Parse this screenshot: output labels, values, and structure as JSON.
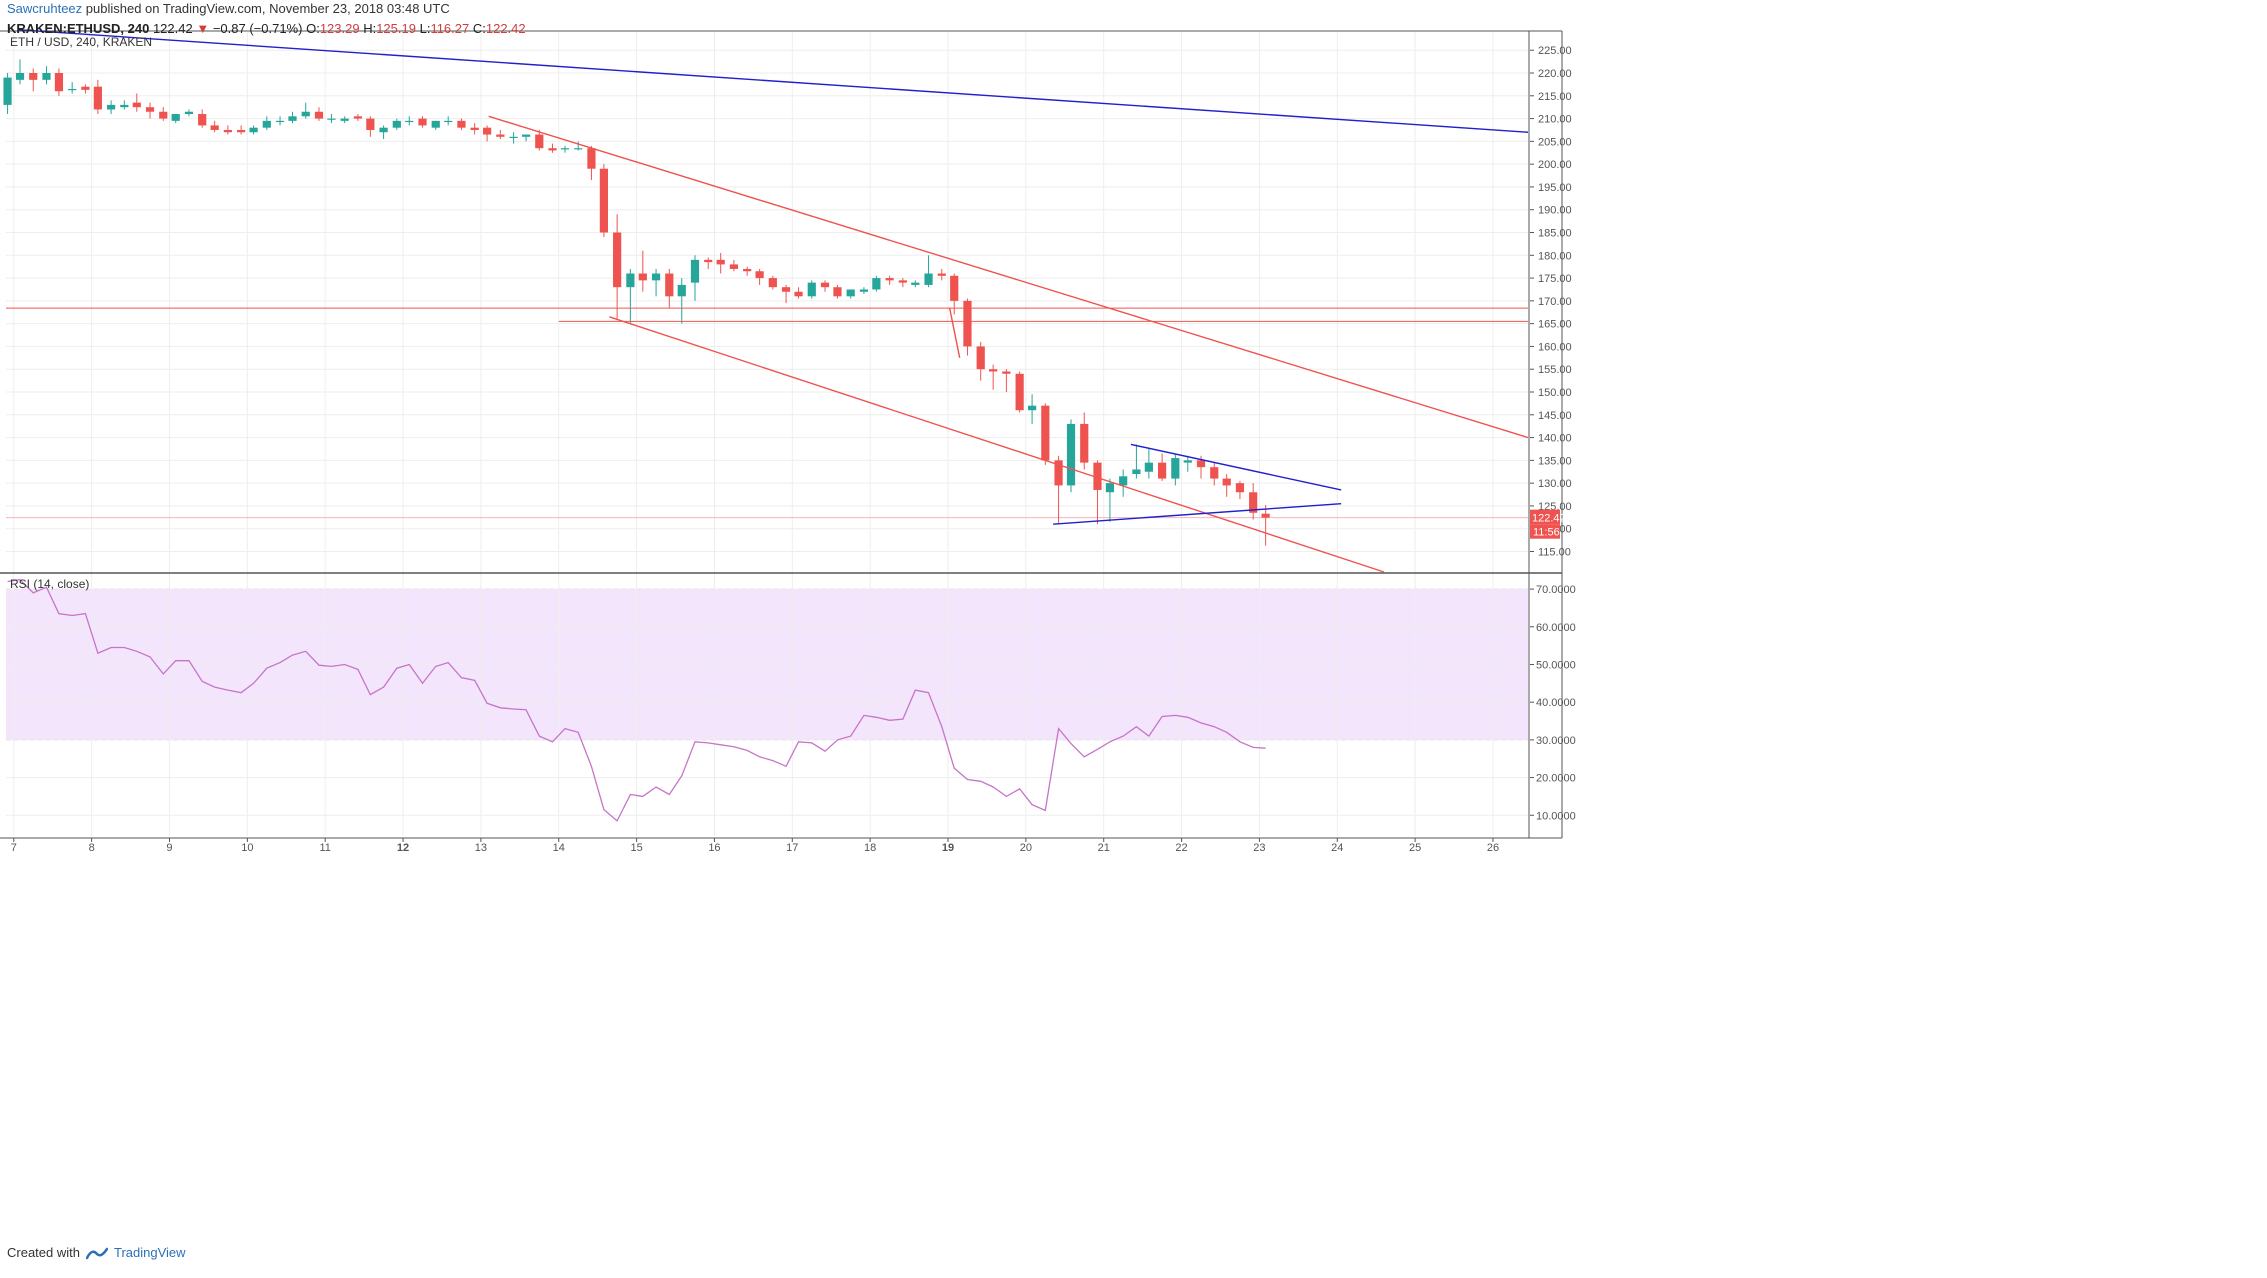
{
  "header": {
    "author": "Sawcruhteez",
    "published": "published on TradingView.com, November 23, 2018 03:48 UTC",
    "symbol": "KRAKEN:ETHUSD, 240",
    "last": "122.42",
    "change": "−0.87 (−0.71%)",
    "o_label": "O:",
    "o_value": "123.29",
    "h_label": "H:",
    "h_value": "125.19",
    "l_label": "L:",
    "l_value": "116.27",
    "c_label": "C:",
    "c_value": "122.42"
  },
  "footer": {
    "created_with": "Created with",
    "brand": "TradingView"
  },
  "colors": {
    "up": "#26a69a",
    "down": "#ef5350",
    "trend_blue": "#2020cc",
    "trend_red": "#ef5350",
    "rsi_line": "#c774c8",
    "rsi_band": "#f3e5fc",
    "grid": "#eeeeee",
    "axis": "#555555"
  },
  "chart_data": [
    {
      "type": "candlestick",
      "title": "ETH / USD, 240, KRAKEN",
      "y_ticks": [
        "115.00",
        "120.00",
        "125.00",
        "130.00",
        "135.00",
        "140.00",
        "145.00",
        "150.00",
        "155.00",
        "160.00",
        "165.00",
        "170.00",
        "175.00",
        "180.00",
        "185.00",
        "190.00",
        "195.00",
        "200.00",
        "205.00",
        "210.00",
        "215.00",
        "220.00",
        "225.00"
      ],
      "ylim": [
        110.5,
        229
      ],
      "x_ticks": [
        {
          "label": "7",
          "day": 7
        },
        {
          "label": "8",
          "day": 8
        },
        {
          "label": "9",
          "day": 9
        },
        {
          "label": "10",
          "day": 10
        },
        {
          "label": "11",
          "day": 11
        },
        {
          "label": "12",
          "day": 12,
          "bold": true
        },
        {
          "label": "13",
          "day": 13
        },
        {
          "label": "14",
          "day": 14
        },
        {
          "label": "15",
          "day": 15
        },
        {
          "label": "16",
          "day": 16
        },
        {
          "label": "17",
          "day": 17
        },
        {
          "label": "18",
          "day": 18
        },
        {
          "label": "19",
          "day": 19,
          "bold": true
        },
        {
          "label": "20",
          "day": 20
        },
        {
          "label": "21",
          "day": 21
        },
        {
          "label": "22",
          "day": 22
        },
        {
          "label": "23",
          "day": 23
        },
        {
          "label": "24",
          "day": 24
        },
        {
          "label": "25",
          "day": 25
        },
        {
          "label": "26",
          "day": 26
        }
      ],
      "xlim": [
        6.9,
        26.45
      ],
      "candles": [
        {
          "x": 6.92,
          "o": 213,
          "h": 220,
          "l": 211,
          "c": 219
        },
        {
          "x": 7.08,
          "o": 218.5,
          "h": 223,
          "l": 217.5,
          "c": 220
        },
        {
          "x": 7.25,
          "o": 220,
          "h": 221,
          "l": 216,
          "c": 218.5
        },
        {
          "x": 7.42,
          "o": 218.5,
          "h": 221.5,
          "l": 217.5,
          "c": 220
        },
        {
          "x": 7.58,
          "o": 220,
          "h": 221,
          "l": 215,
          "c": 216
        },
        {
          "x": 7.75,
          "o": 216.5,
          "h": 218,
          "l": 215.5,
          "c": 216.5
        },
        {
          "x": 7.92,
          "o": 217,
          "h": 217.5,
          "l": 215.5,
          "c": 216.3
        },
        {
          "x": 8.08,
          "o": 217,
          "h": 218.5,
          "l": 211,
          "c": 212
        },
        {
          "x": 8.25,
          "o": 212,
          "h": 214,
          "l": 211,
          "c": 213
        },
        {
          "x": 8.42,
          "o": 212.5,
          "h": 214,
          "l": 212,
          "c": 213
        },
        {
          "x": 8.58,
          "o": 213.5,
          "h": 215.5,
          "l": 211.5,
          "c": 212.5
        },
        {
          "x": 8.75,
          "o": 212.5,
          "h": 213.5,
          "l": 210,
          "c": 211.5
        },
        {
          "x": 8.92,
          "o": 211.5,
          "h": 212.5,
          "l": 209.5,
          "c": 210
        },
        {
          "x": 9.08,
          "o": 209.5,
          "h": 211,
          "l": 209,
          "c": 211
        },
        {
          "x": 9.25,
          "o": 211,
          "h": 212,
          "l": 210.5,
          "c": 211.5
        },
        {
          "x": 9.42,
          "o": 211,
          "h": 212,
          "l": 208,
          "c": 208.5
        },
        {
          "x": 9.58,
          "o": 208.5,
          "h": 209.5,
          "l": 207,
          "c": 207.5
        },
        {
          "x": 9.75,
          "o": 207.5,
          "h": 208.5,
          "l": 206.5,
          "c": 207
        },
        {
          "x": 9.92,
          "o": 207.5,
          "h": 208.5,
          "l": 206.5,
          "c": 207
        },
        {
          "x": 10.08,
          "o": 207,
          "h": 208.5,
          "l": 206.5,
          "c": 208
        },
        {
          "x": 10.25,
          "o": 208,
          "h": 210.5,
          "l": 207.5,
          "c": 209.5
        },
        {
          "x": 10.42,
          "o": 209.5,
          "h": 210.5,
          "l": 208.5,
          "c": 209.5
        },
        {
          "x": 10.58,
          "o": 209.5,
          "h": 211.5,
          "l": 209,
          "c": 210.5
        },
        {
          "x": 10.75,
          "o": 210.5,
          "h": 213.5,
          "l": 210,
          "c": 211.5
        },
        {
          "x": 10.92,
          "o": 211.5,
          "h": 212.5,
          "l": 209.5,
          "c": 210
        },
        {
          "x": 11.08,
          "o": 210,
          "h": 211,
          "l": 209,
          "c": 210
        },
        {
          "x": 11.25,
          "o": 209.5,
          "h": 210.5,
          "l": 209,
          "c": 210
        },
        {
          "x": 11.42,
          "o": 210.5,
          "h": 211,
          "l": 209.5,
          "c": 210
        },
        {
          "x": 11.58,
          "o": 210,
          "h": 210.5,
          "l": 206,
          "c": 207.5
        },
        {
          "x": 11.75,
          "o": 207,
          "h": 208.5,
          "l": 205.5,
          "c": 208
        },
        {
          "x": 11.92,
          "o": 208,
          "h": 210,
          "l": 207.5,
          "c": 209.5
        },
        {
          "x": 12.08,
          "o": 209.5,
          "h": 210.5,
          "l": 208.5,
          "c": 209.5
        },
        {
          "x": 12.25,
          "o": 210,
          "h": 210.5,
          "l": 208,
          "c": 208.5
        },
        {
          "x": 12.42,
          "o": 208,
          "h": 209.5,
          "l": 207.5,
          "c": 209.5
        },
        {
          "x": 12.58,
          "o": 209.5,
          "h": 210.5,
          "l": 208.5,
          "c": 209.5
        },
        {
          "x": 12.75,
          "o": 209.5,
          "h": 210,
          "l": 207.5,
          "c": 208
        },
        {
          "x": 12.92,
          "o": 208,
          "h": 209,
          "l": 206.5,
          "c": 207.5
        },
        {
          "x": 13.08,
          "o": 208,
          "h": 208.5,
          "l": 205,
          "c": 206.5
        },
        {
          "x": 13.25,
          "o": 206.5,
          "h": 207.5,
          "l": 205.5,
          "c": 206
        },
        {
          "x": 13.42,
          "o": 206,
          "h": 207,
          "l": 204.5,
          "c": 206
        },
        {
          "x": 13.58,
          "o": 206,
          "h": 206.5,
          "l": 205,
          "c": 206.5
        },
        {
          "x": 13.75,
          "o": 206.5,
          "h": 207.5,
          "l": 203,
          "c": 203.5
        },
        {
          "x": 13.92,
          "o": 203.5,
          "h": 204.5,
          "l": 202.5,
          "c": 203
        },
        {
          "x": 14.08,
          "o": 203.5,
          "h": 204,
          "l": 202.5,
          "c": 203.5
        },
        {
          "x": 14.25,
          "o": 203.5,
          "h": 205,
          "l": 203,
          "c": 203.5
        },
        {
          "x": 14.42,
          "o": 203.5,
          "h": 204,
          "l": 196.5,
          "c": 199
        },
        {
          "x": 14.58,
          "o": 199,
          "h": 200,
          "l": 184,
          "c": 185
        },
        {
          "x": 14.75,
          "o": 185,
          "h": 189,
          "l": 166,
          "c": 173
        },
        {
          "x": 14.92,
          "o": 173,
          "h": 177,
          "l": 165,
          "c": 176
        },
        {
          "x": 15.08,
          "o": 176,
          "h": 181,
          "l": 172,
          "c": 174.5
        },
        {
          "x": 15.25,
          "o": 174.5,
          "h": 177,
          "l": 171,
          "c": 176
        },
        {
          "x": 15.42,
          "o": 176,
          "h": 177,
          "l": 168.5,
          "c": 171
        },
        {
          "x": 15.58,
          "o": 171,
          "h": 175,
          "l": 165,
          "c": 173.5
        },
        {
          "x": 15.75,
          "o": 174,
          "h": 180,
          "l": 170,
          "c": 179
        },
        {
          "x": 15.92,
          "o": 179,
          "h": 179.5,
          "l": 177,
          "c": 178.5
        },
        {
          "x": 16.08,
          "o": 179,
          "h": 180.5,
          "l": 176,
          "c": 178
        },
        {
          "x": 16.25,
          "o": 178,
          "h": 179,
          "l": 176.5,
          "c": 177
        },
        {
          "x": 16.42,
          "o": 177,
          "h": 177.5,
          "l": 175.5,
          "c": 176.5
        },
        {
          "x": 16.58,
          "o": 176.5,
          "h": 177,
          "l": 173.5,
          "c": 175
        },
        {
          "x": 16.75,
          "o": 175,
          "h": 175.5,
          "l": 172.5,
          "c": 173
        },
        {
          "x": 16.92,
          "o": 173,
          "h": 173.5,
          "l": 169.5,
          "c": 172
        },
        {
          "x": 17.08,
          "o": 172,
          "h": 173,
          "l": 170.5,
          "c": 171
        },
        {
          "x": 17.25,
          "o": 171,
          "h": 174.5,
          "l": 170.5,
          "c": 174
        },
        {
          "x": 17.42,
          "o": 174,
          "h": 174.5,
          "l": 172,
          "c": 173
        },
        {
          "x": 17.58,
          "o": 173,
          "h": 173.5,
          "l": 170.5,
          "c": 171
        },
        {
          "x": 17.75,
          "o": 171,
          "h": 172.5,
          "l": 170.5,
          "c": 172.5
        },
        {
          "x": 17.92,
          "o": 172,
          "h": 173,
          "l": 171.5,
          "c": 172.5
        },
        {
          "x": 18.08,
          "o": 172.5,
          "h": 175.5,
          "l": 172,
          "c": 175
        },
        {
          "x": 18.25,
          "o": 175,
          "h": 175.5,
          "l": 173.5,
          "c": 174.5
        },
        {
          "x": 18.42,
          "o": 174.5,
          "h": 175,
          "l": 173,
          "c": 174
        },
        {
          "x": 18.58,
          "o": 173.5,
          "h": 174.5,
          "l": 173,
          "c": 174
        },
        {
          "x": 18.75,
          "o": 173.5,
          "h": 180,
          "l": 173,
          "c": 176
        },
        {
          "x": 18.92,
          "o": 176,
          "h": 177,
          "l": 174.5,
          "c": 175.5
        },
        {
          "x": 19.08,
          "o": 175.5,
          "h": 176,
          "l": 167,
          "c": 170
        },
        {
          "x": 19.25,
          "o": 170,
          "h": 170.5,
          "l": 158,
          "c": 160
        },
        {
          "x": 19.42,
          "o": 160,
          "h": 161,
          "l": 152.5,
          "c": 155
        },
        {
          "x": 19.58,
          "o": 155,
          "h": 156,
          "l": 150.5,
          "c": 154.5
        },
        {
          "x": 19.75,
          "o": 154.5,
          "h": 155,
          "l": 150,
          "c": 154
        },
        {
          "x": 19.92,
          "o": 154,
          "h": 154.5,
          "l": 145.5,
          "c": 146
        },
        {
          "x": 20.08,
          "o": 146,
          "h": 149.5,
          "l": 143,
          "c": 147
        },
        {
          "x": 20.25,
          "o": 147,
          "h": 147.5,
          "l": 134,
          "c": 135
        },
        {
          "x": 20.42,
          "o": 135,
          "h": 136,
          "l": 121,
          "c": 129.5
        },
        {
          "x": 20.58,
          "o": 129.5,
          "h": 144,
          "l": 128,
          "c": 143
        },
        {
          "x": 20.75,
          "o": 143,
          "h": 145.5,
          "l": 133,
          "c": 134.5
        },
        {
          "x": 20.92,
          "o": 134.5,
          "h": 135,
          "l": 121,
          "c": 128.5
        },
        {
          "x": 21.08,
          "o": 128,
          "h": 131,
          "l": 121.5,
          "c": 130
        },
        {
          "x": 21.25,
          "o": 129.5,
          "h": 133,
          "l": 127,
          "c": 131.5
        },
        {
          "x": 21.42,
          "o": 132,
          "h": 138.5,
          "l": 131,
          "c": 133
        },
        {
          "x": 21.58,
          "o": 132.5,
          "h": 137.5,
          "l": 131,
          "c": 134.5
        },
        {
          "x": 21.75,
          "o": 134.5,
          "h": 136.5,
          "l": 130.5,
          "c": 131
        },
        {
          "x": 21.92,
          "o": 131,
          "h": 136.5,
          "l": 129.5,
          "c": 135.5
        },
        {
          "x": 22.08,
          "o": 134.5,
          "h": 136,
          "l": 132.5,
          "c": 135
        },
        {
          "x": 22.25,
          "o": 135,
          "h": 136,
          "l": 131,
          "c": 133.5
        },
        {
          "x": 22.42,
          "o": 133.5,
          "h": 134.5,
          "l": 129.5,
          "c": 131
        },
        {
          "x": 22.58,
          "o": 131,
          "h": 132,
          "l": 127,
          "c": 129.5
        },
        {
          "x": 22.75,
          "o": 130,
          "h": 130.5,
          "l": 126.5,
          "c": 128
        },
        {
          "x": 22.92,
          "o": 128,
          "h": 130,
          "l": 122,
          "c": 123.5
        },
        {
          "x": 23.08,
          "o": 123.29,
          "h": 125.19,
          "l": 116.27,
          "c": 122.42
        }
      ],
      "trendlines": [
        {
          "color": "blue",
          "from": [
            7.05,
            229.5
          ],
          "to": [
            26.45,
            207
          ]
        },
        {
          "color": "red",
          "from": [
            13.1,
            210.5
          ],
          "to": [
            26.45,
            140
          ]
        },
        {
          "color": "red",
          "from": [
            14.65,
            166.5
          ],
          "to": [
            24.6,
            110.5
          ]
        },
        {
          "color": "blue",
          "from": [
            21.35,
            138.5
          ],
          "to": [
            24.05,
            128.5
          ]
        },
        {
          "color": "blue",
          "from": [
            20.35,
            121
          ],
          "to": [
            24.05,
            125.5
          ]
        },
        {
          "color": "red",
          "from": [
            19.02,
            168.5
          ],
          "to": [
            19.15,
            157.5
          ]
        }
      ],
      "hlines": [
        {
          "y": 168.4,
          "from": 6.9,
          "to": 26.45
        },
        {
          "y": 165.5,
          "from": 14.0,
          "to": 26.45
        },
        {
          "y": 122.42,
          "from": 6.9,
          "to": 26.45,
          "faint": true
        }
      ],
      "last_price_label": "122.42",
      "countdown_label": "11:56"
    },
    {
      "type": "line",
      "title": "RSI (14, close)",
      "y_ticks": [
        "10.0000",
        "20.0000",
        "30.0000",
        "40.0000",
        "50.0000",
        "60.0000",
        "70.0000"
      ],
      "ylim": [
        4.5,
        74
      ],
      "band": [
        30,
        70
      ],
      "x": [
        6.92,
        7.08,
        7.25,
        7.42,
        7.58,
        7.75,
        7.92,
        8.08,
        8.25,
        8.42,
        8.58,
        8.75,
        8.92,
        9.08,
        9.25,
        9.42,
        9.58,
        9.75,
        9.92,
        10.08,
        10.25,
        10.42,
        10.58,
        10.75,
        10.92,
        11.08,
        11.25,
        11.42,
        11.58,
        11.75,
        11.92,
        12.08,
        12.25,
        12.42,
        12.58,
        12.75,
        12.92,
        13.08,
        13.25,
        13.42,
        13.58,
        13.75,
        13.92,
        14.08,
        14.25,
        14.42,
        14.58,
        14.75,
        14.92,
        15.08,
        15.25,
        15.42,
        15.58,
        15.75,
        15.92,
        16.08,
        16.25,
        16.42,
        16.58,
        16.75,
        16.92,
        17.08,
        17.25,
        17.42,
        17.58,
        17.75,
        17.92,
        18.08,
        18.25,
        18.42,
        18.58,
        18.75,
        18.92,
        19.08,
        19.25,
        19.42,
        19.58,
        19.75,
        19.92,
        20.08,
        20.25,
        20.42,
        20.58,
        20.75,
        20.92,
        21.08,
        21.25,
        21.42,
        21.58,
        21.75,
        21.92,
        22.08,
        22.25,
        22.42,
        22.58,
        22.75,
        22.92,
        23.08
      ],
      "values": [
        72,
        72.5,
        69,
        70.5,
        63.5,
        63,
        63.5,
        53,
        54.5,
        54.5,
        53.5,
        52,
        47.5,
        51,
        51,
        45.5,
        44,
        43.2,
        42.5,
        45,
        49,
        50.5,
        52.5,
        53.5,
        49.8,
        49.5,
        50,
        48.7,
        42,
        44,
        49,
        50,
        45,
        49.5,
        50.5,
        46.5,
        45.8,
        39.7,
        38.5,
        38.2,
        38,
        31,
        29.5,
        33,
        32,
        23,
        11.5,
        8.5,
        15.5,
        15,
        17.5,
        15.5,
        20.5,
        29.5,
        29.2,
        28.7,
        28.2,
        27.2,
        25.5,
        24.5,
        23,
        29.5,
        29.2,
        27,
        30,
        31,
        36.5,
        36,
        35.2,
        35.5,
        43.2,
        42.5,
        33.5,
        22.5,
        19.5,
        19,
        17.5,
        15,
        17,
        12.8,
        11.3,
        33,
        29,
        25.5,
        27.5,
        29.5,
        31,
        33.5,
        31,
        36.2,
        36.5,
        36,
        34.5,
        33.5,
        32,
        29.5,
        28,
        27.8
      ]
    }
  ]
}
